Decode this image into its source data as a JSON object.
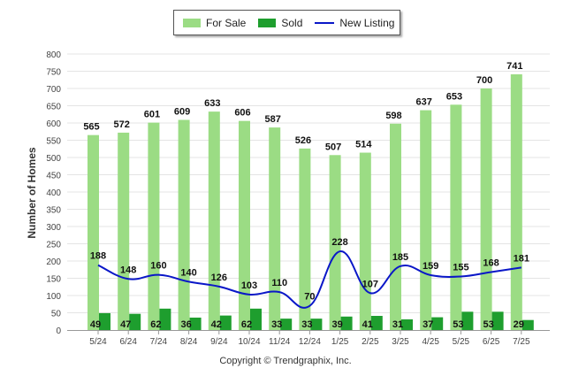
{
  "chart_data": {
    "type": "bar",
    "categories": [
      "5/24",
      "6/24",
      "7/24",
      "8/24",
      "9/24",
      "10/24",
      "11/24",
      "12/24",
      "1/25",
      "2/25",
      "3/25",
      "4/25",
      "5/25",
      "6/25",
      "7/25"
    ],
    "series": [
      {
        "name": "For Sale",
        "type": "bar",
        "color": "#9bdc84",
        "values": [
          565,
          572,
          601,
          609,
          633,
          606,
          587,
          526,
          507,
          514,
          598,
          637,
          653,
          700,
          741
        ]
      },
      {
        "name": "Sold",
        "type": "bar",
        "color": "#1e9e2e",
        "values": [
          49,
          47,
          62,
          36,
          42,
          62,
          33,
          33,
          39,
          41,
          31,
          37,
          53,
          53,
          29
        ]
      },
      {
        "name": "New Listing",
        "type": "line",
        "color": "#0a17c8",
        "values": [
          188,
          148,
          160,
          140,
          126,
          103,
          110,
          70,
          228,
          107,
          185,
          159,
          155,
          168,
          181
        ]
      }
    ],
    "ylabel": "Number of Homes",
    "xlabel": "",
    "ylim": [
      0,
      800
    ],
    "yticks": [
      0,
      50,
      100,
      150,
      200,
      250,
      300,
      350,
      400,
      450,
      500,
      550,
      600,
      650,
      700,
      750,
      800
    ],
    "grid": true,
    "legend": "top-center"
  },
  "legend": {
    "for_sale": "For Sale",
    "sold": "Sold",
    "new_listing": "New Listing"
  },
  "footer": {
    "copyright": "Copyright © Trendgraphix, Inc."
  }
}
